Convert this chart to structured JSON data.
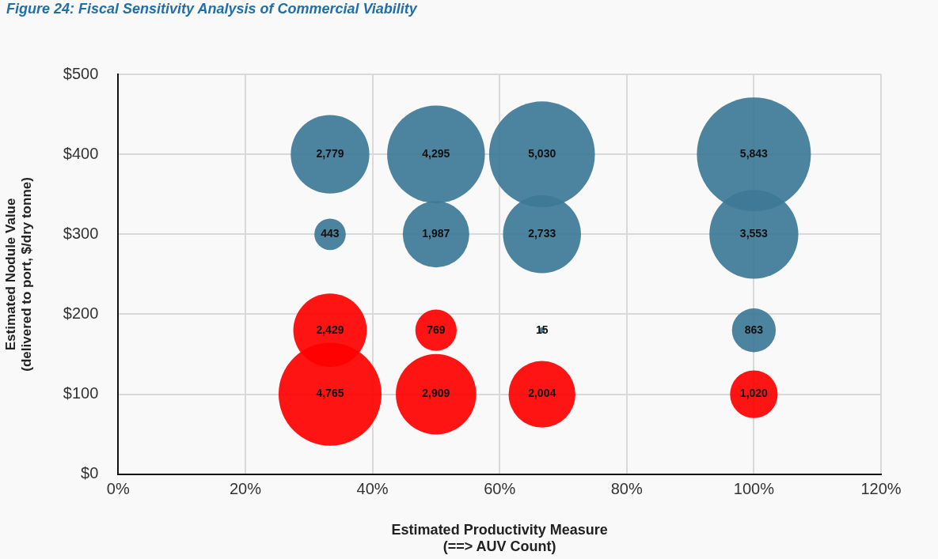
{
  "chart_data": {
    "type": "bubble",
    "title": "Figure 24: Fiscal Sensitivity Analysis of Commercial Viability",
    "xlabel": "Estimated Productivity Measure\n(==> AUV Count)",
    "ylabel": "Estimated Nodule Value\n(delivered to port, $/dry tonne)",
    "series": [
      {
        "color": "#3d7896",
        "x": [
          33.33,
          50,
          66.67,
          100,
          33.33,
          50,
          66.67,
          100,
          66.67,
          100
        ],
        "values": [
          400,
          400,
          400,
          400,
          300,
          300,
          300,
          300,
          180,
          180
        ],
        "sizes": [
          2779,
          4295,
          5030,
          5843,
          443,
          1987,
          2733,
          3553,
          15,
          863
        ],
        "value_labels": [
          "2,779",
          "4,295",
          "5,030",
          "5,843",
          "443",
          "1,987",
          "2,733",
          "3,553",
          "15",
          "863"
        ]
      },
      {
        "color": "#ff0000",
        "x": [
          33.33,
          50,
          33.33,
          50,
          66.67,
          100
        ],
        "values": [
          180,
          180,
          100,
          100,
          100,
          100
        ],
        "sizes": [
          2429,
          769,
          4765,
          2909,
          2004,
          1020
        ],
        "value_labels": [
          "2,429",
          "769",
          "4,765",
          "2,909",
          "2,004",
          "1,020"
        ]
      }
    ],
    "xlim": [
      0,
      120
    ],
    "xticks": [
      {
        "value": 0,
        "label": "0%"
      },
      {
        "value": 20,
        "label": "20%"
      },
      {
        "value": 40,
        "label": "40%"
      },
      {
        "value": 60,
        "label": "60%"
      },
      {
        "value": 80,
        "label": "80%"
      },
      {
        "value": 100,
        "label": "100%"
      },
      {
        "value": 120,
        "label": "120%"
      }
    ],
    "ylim": [
      0,
      500
    ],
    "yticks": [
      {
        "value": 0,
        "label": "$0"
      },
      {
        "value": 100,
        "label": "$100"
      },
      {
        "value": 200,
        "label": "$200"
      },
      {
        "value": 300,
        "label": "$300"
      },
      {
        "value": 400,
        "label": "$400"
      },
      {
        "value": 500,
        "label": "$500"
      }
    ],
    "grid": true,
    "legend": false
  }
}
